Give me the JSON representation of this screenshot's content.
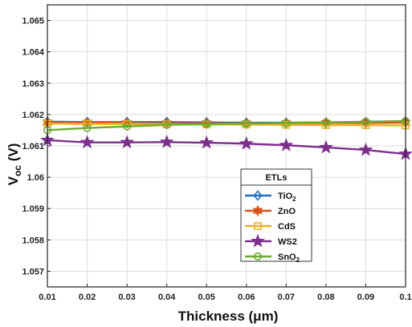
{
  "chart_data": {
    "type": "line",
    "xlabel": "Thickness (μm)",
    "ylabel": "V_oc (V)",
    "x": [
      0.01,
      0.02,
      0.03,
      0.04,
      0.05,
      0.06,
      0.07,
      0.08,
      0.09,
      0.1
    ],
    "xlim": [
      0.01,
      0.1
    ],
    "ylim": [
      1.0565,
      1.0655
    ],
    "x_ticks": [
      "0.01",
      "0.02",
      "0.03",
      "0.04",
      "0.05",
      "0.06",
      "0.07",
      "0.08",
      "0.09",
      "0.1"
    ],
    "y_ticks": [
      "1.057",
      "1.058",
      "1.059",
      "1.06",
      "1.061",
      "1.062",
      "1.063",
      "1.064",
      "1.065"
    ],
    "grid": true,
    "legend": {
      "title": "ETLs",
      "placement": "lower-right"
    },
    "series": [
      {
        "name": "TiO2",
        "color": "#1f6fbf",
        "marker": "diamond",
        "values": [
          1.06177,
          1.06176,
          1.06176,
          1.06176,
          1.06175,
          1.06174,
          1.06174,
          1.06175,
          1.06176,
          1.06178
        ]
      },
      {
        "name": "ZnO",
        "color": "#d95319",
        "marker": "hexagram",
        "values": [
          1.06175,
          1.06174,
          1.06173,
          1.06172,
          1.06172,
          1.06172,
          1.06172,
          1.06173,
          1.06173,
          1.06174
        ]
      },
      {
        "name": "CdS",
        "color": "#edb120",
        "marker": "square",
        "values": [
          1.06171,
          1.0617,
          1.0617,
          1.06169,
          1.06168,
          1.06168,
          1.06167,
          1.06166,
          1.06166,
          1.06165
        ]
      },
      {
        "name": "WS2",
        "color": "#7e2f8e",
        "marker": "pentagram",
        "values": [
          1.06118,
          1.06111,
          1.06111,
          1.06112,
          1.0611,
          1.06107,
          1.06102,
          1.06095,
          1.06087,
          1.06074
        ]
      },
      {
        "name": "SnO2",
        "color": "#6bab2e",
        "marker": "circle",
        "values": [
          1.0615,
          1.06157,
          1.06162,
          1.06167,
          1.0617,
          1.06171,
          1.06173,
          1.06175,
          1.06177,
          1.06179
        ]
      }
    ]
  }
}
